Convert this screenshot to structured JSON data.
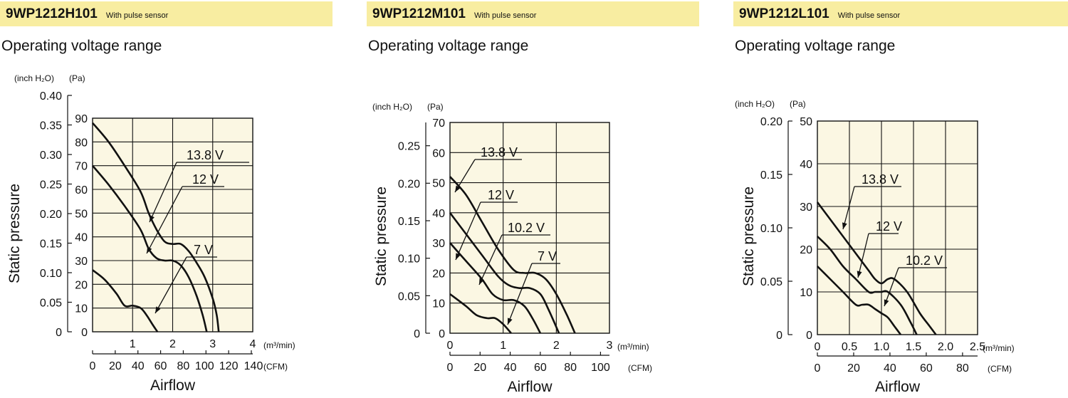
{
  "colors": {
    "header_bg": "#f8eda1",
    "plot_bg": "#fbf7e3",
    "line": "#111111"
  },
  "charts": [
    {
      "model": "9WP1212H101",
      "subtitle": "With pulse sensor",
      "section_title": "Operating voltage range",
      "unit_inh2o": "(inch H₂O)",
      "unit_pa": "(Pa)",
      "unit_m3": "(m³/min)",
      "unit_cfm": "(CFM)",
      "ylabel": "Static pressure",
      "xlabel": "Airflow",
      "inh2o_ticks": [
        "0",
        "0.05",
        "0.10",
        "0.15",
        "0.20",
        "0.25",
        "0.30",
        "0.35",
        "0.40"
      ],
      "pa_ticks": [
        "0",
        "10",
        "20",
        "30",
        "40",
        "50",
        "60",
        "70",
        "80",
        "90"
      ],
      "m3_ticks": [
        "1",
        "2",
        "3",
        "4"
      ],
      "cfm_ticks": [
        "0",
        "20",
        "40",
        "60",
        "80",
        "100",
        "120",
        "140"
      ]
    },
    {
      "model": "9WP1212M101",
      "subtitle": "With pulse sensor",
      "section_title": "Operating voltage range",
      "unit_inh2o": "(inch H₂O)",
      "unit_pa": "(Pa)",
      "unit_m3": "(m³/min)",
      "unit_cfm": "(CFM)",
      "ylabel": "Static pressure",
      "xlabel": "Airflow",
      "inh2o_ticks": [
        "0",
        "0.05",
        "0.10",
        "0.15",
        "0.20",
        "0.25"
      ],
      "pa_ticks": [
        "0",
        "10",
        "20",
        "30",
        "40",
        "50",
        "60",
        "70"
      ],
      "m3_ticks": [
        "0",
        "1",
        "2",
        "3"
      ],
      "cfm_ticks": [
        "0",
        "20",
        "40",
        "60",
        "80",
        "100"
      ]
    },
    {
      "model": "9WP1212L101",
      "subtitle": "With pulse sensor",
      "section_title": "Operating voltage range",
      "unit_inh2o": "(inch H₂O)",
      "unit_pa": "(Pa)",
      "unit_m3": "(m³/min)",
      "unit_cfm": "(CFM)",
      "ylabel": "Static pressure",
      "xlabel": "Airflow",
      "inh2o_ticks": [
        "0",
        "0.05",
        "0.10",
        "0.15",
        "0.20"
      ],
      "pa_ticks": [
        "0",
        "10",
        "20",
        "30",
        "40",
        "50"
      ],
      "m3_ticks": [
        "0",
        "0.5",
        "1.0",
        "1.5",
        "2.0",
        "2.5"
      ],
      "cfm_ticks": [
        "0",
        "20",
        "40",
        "60",
        "80"
      ]
    }
  ],
  "chart_data": [
    {
      "type": "line",
      "title": "9WP1212H101",
      "xlabel": "Airflow (m³/min)",
      "ylabel": "Static pressure (Pa)",
      "xlim": [
        0,
        4
      ],
      "ylim": [
        0,
        90
      ],
      "grid": true,
      "series": [
        {
          "name": "13.8 V",
          "x": [
            0,
            0.4,
            0.8,
            1.2,
            1.4,
            1.6,
            1.8,
            2.0,
            2.2,
            2.4,
            2.6,
            2.8,
            3.0,
            3.1,
            3.15
          ],
          "y": [
            88,
            80,
            70,
            59,
            50,
            43,
            38,
            37,
            37,
            34,
            29,
            23,
            14,
            7,
            0
          ]
        },
        {
          "name": "12 V",
          "x": [
            0,
            0.4,
            0.8,
            1.2,
            1.4,
            1.6,
            1.8,
            2.0,
            2.2,
            2.4,
            2.6,
            2.75,
            2.85
          ],
          "y": [
            70,
            62,
            53,
            43,
            35,
            31,
            30,
            30,
            28,
            23,
            15,
            7,
            0
          ]
        },
        {
          "name": "7 V",
          "x": [
            0,
            0.3,
            0.6,
            0.8,
            1.0,
            1.2,
            1.35,
            1.5,
            1.62
          ],
          "y": [
            26,
            22,
            16,
            11,
            11,
            10,
            7,
            3,
            0
          ]
        }
      ]
    },
    {
      "type": "line",
      "title": "9WP1212M101",
      "xlabel": "Airflow (m³/min)",
      "ylabel": "Static pressure (Pa)",
      "xlim": [
        0,
        3
      ],
      "ylim": [
        0,
        70
      ],
      "grid": true,
      "series": [
        {
          "name": "13.8 V",
          "x": [
            0,
            0.3,
            0.6,
            0.9,
            1.2,
            1.4,
            1.6,
            1.8,
            2.0,
            2.2,
            2.35
          ],
          "y": [
            52,
            46,
            37,
            28,
            21,
            20,
            20,
            18,
            13,
            6,
            0
          ]
        },
        {
          "name": "12 V",
          "x": [
            0,
            0.3,
            0.6,
            0.9,
            1.1,
            1.3,
            1.5,
            1.7,
            1.85,
            2.05
          ],
          "y": [
            40,
            33,
            26,
            19,
            16,
            15,
            15,
            13,
            8,
            0
          ]
        },
        {
          "name": "10.2 V",
          "x": [
            0,
            0.3,
            0.6,
            0.8,
            1.0,
            1.2,
            1.4,
            1.55,
            1.7
          ],
          "y": [
            30,
            24,
            18,
            13,
            11,
            11,
            9,
            5,
            0
          ]
        },
        {
          "name": "7 V",
          "x": [
            0,
            0.3,
            0.5,
            0.7,
            0.85,
            1.0,
            1.15
          ],
          "y": [
            13,
            9,
            6,
            5,
            5,
            3,
            0
          ]
        }
      ]
    },
    {
      "type": "line",
      "title": "9WP1212L101",
      "xlabel": "Airflow (m³/min)",
      "ylabel": "Static pressure (Pa)",
      "xlim": [
        0,
        2.5
      ],
      "ylim": [
        0,
        50
      ],
      "grid": true,
      "series": [
        {
          "name": "13.8 V",
          "x": [
            0,
            0.2,
            0.4,
            0.6,
            0.8,
            0.9,
            1.0,
            1.1,
            1.2,
            1.4,
            1.6,
            1.75,
            1.85
          ],
          "y": [
            31,
            27,
            23,
            19,
            15,
            13,
            12,
            13,
            13,
            10,
            5,
            2,
            0
          ]
        },
        {
          "name": "12 V",
          "x": [
            0,
            0.2,
            0.4,
            0.6,
            0.8,
            0.9,
            1.0,
            1.1,
            1.3,
            1.45,
            1.55
          ],
          "y": [
            23,
            20,
            16,
            13,
            10,
            10,
            10,
            10,
            7,
            3,
            0
          ]
        },
        {
          "name": "10.2 V",
          "x": [
            0,
            0.2,
            0.4,
            0.6,
            0.7,
            0.8,
            0.9,
            1.0,
            1.1,
            1.2,
            1.3
          ],
          "y": [
            16,
            13,
            10,
            7,
            7,
            7,
            6,
            5,
            4,
            2,
            0
          ]
        }
      ]
    }
  ]
}
